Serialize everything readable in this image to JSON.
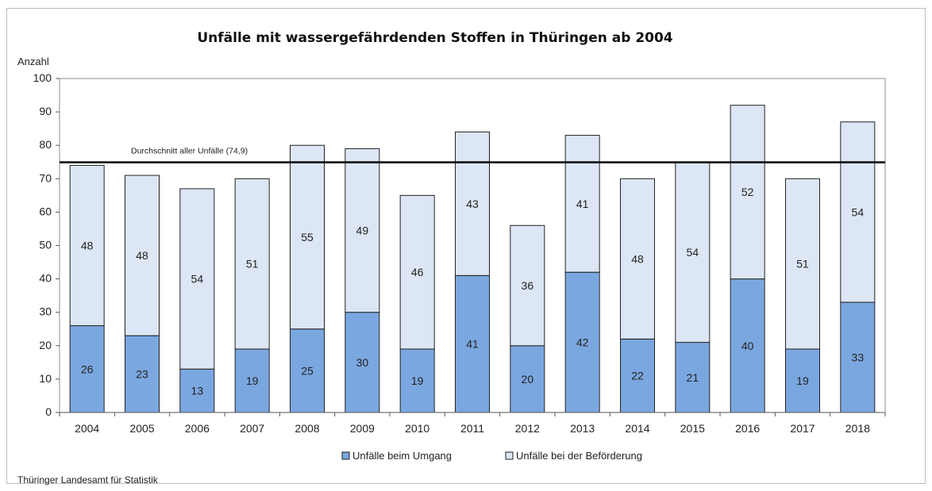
{
  "chart_data": {
    "type": "bar",
    "stacked": true,
    "title": "Unfälle mit wassergefährdenden Stoffen in Thüringen ab 2004",
    "ylabel": "Anzahl",
    "xlabel": "",
    "ylim": [
      0,
      100
    ],
    "yticks": [
      0,
      10,
      20,
      30,
      40,
      50,
      60,
      70,
      80,
      90,
      100
    ],
    "categories": [
      "2004",
      "2005",
      "2006",
      "2007",
      "2008",
      "2009",
      "2010",
      "2011",
      "2012",
      "2013",
      "2014",
      "2015",
      "2016",
      "2017",
      "2018"
    ],
    "series": [
      {
        "name": "Unfälle beim Umgang",
        "color": "#7ba7e0",
        "values": [
          26,
          23,
          13,
          19,
          25,
          30,
          19,
          41,
          20,
          42,
          22,
          21,
          40,
          19,
          33
        ]
      },
      {
        "name": "Unfälle bei der Beförderung",
        "color": "#dce6f4",
        "values": [
          48,
          48,
          54,
          51,
          55,
          49,
          46,
          43,
          36,
          41,
          48,
          54,
          52,
          51,
          54
        ]
      }
    ],
    "reference_line": {
      "value": 74.9,
      "label": "Durchschnitt aller Unfälle (74,9)"
    },
    "legend_position": "bottom-center",
    "grid": false
  },
  "footer": {
    "source": "Thüringer Landesamt für Statistik"
  }
}
